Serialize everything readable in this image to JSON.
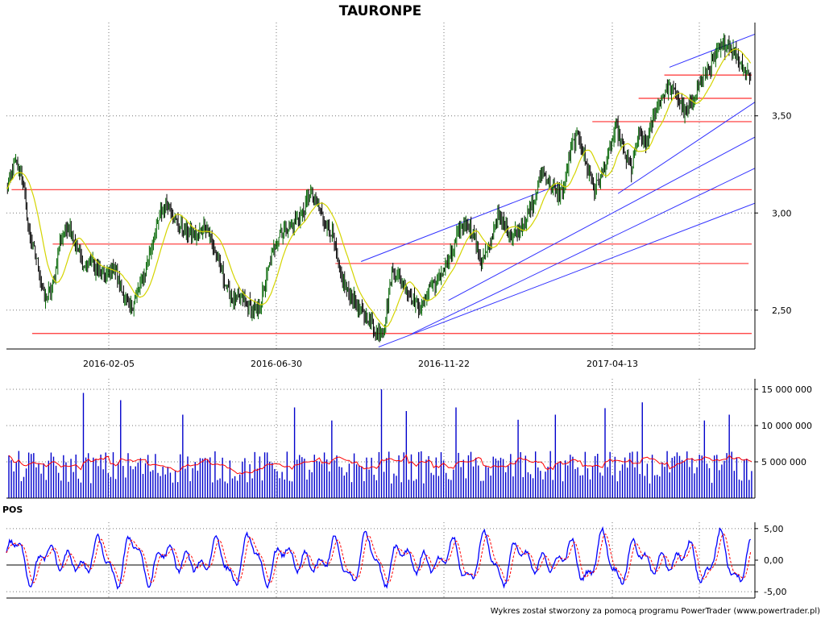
{
  "chart_data": [
    {
      "type": "candlestick",
      "title": "TAURONPE",
      "x_ticks": [
        "2016-02-05",
        "2016-06-30",
        "2016-11-22",
        "2017-04-13"
      ],
      "y_ticks": [
        "2,50",
        "3,00",
        "3,50"
      ],
      "ylim": [
        2.3,
        3.98
      ],
      "close_path": [
        [
          0,
          3.12
        ],
        [
          8,
          3.25
        ],
        [
          15,
          3.2
        ],
        [
          22,
          2.9
        ],
        [
          30,
          2.75
        ],
        [
          37,
          2.55
        ],
        [
          45,
          2.62
        ],
        [
          52,
          2.85
        ],
        [
          60,
          2.95
        ],
        [
          68,
          2.83
        ],
        [
          75,
          2.72
        ],
        [
          82,
          2.75
        ],
        [
          90,
          2.7
        ],
        [
          98,
          2.68
        ],
        [
          105,
          2.72
        ],
        [
          112,
          2.6
        ],
        [
          120,
          2.5
        ],
        [
          127,
          2.58
        ],
        [
          135,
          2.7
        ],
        [
          142,
          2.85
        ],
        [
          150,
          3.0
        ],
        [
          157,
          3.05
        ],
        [
          164,
          2.96
        ],
        [
          171,
          2.92
        ],
        [
          178,
          2.9
        ],
        [
          186,
          2.88
        ],
        [
          193,
          2.95
        ],
        [
          200,
          2.85
        ],
        [
          208,
          2.72
        ],
        [
          215,
          2.6
        ],
        [
          222,
          2.55
        ],
        [
          229,
          2.56
        ],
        [
          237,
          2.52
        ],
        [
          244,
          2.48
        ],
        [
          251,
          2.62
        ],
        [
          259,
          2.8
        ],
        [
          266,
          2.9
        ],
        [
          273,
          2.92
        ],
        [
          280,
          2.95
        ],
        [
          288,
          3.0
        ],
        [
          295,
          3.1
        ],
        [
          302,
          3.05
        ],
        [
          310,
          2.95
        ],
        [
          317,
          2.9
        ],
        [
          324,
          2.7
        ],
        [
          331,
          2.6
        ],
        [
          339,
          2.55
        ],
        [
          346,
          2.48
        ],
        [
          353,
          2.45
        ],
        [
          361,
          2.38
        ],
        [
          368,
          2.42
        ],
        [
          375,
          2.7
        ],
        [
          382,
          2.68
        ],
        [
          390,
          2.6
        ],
        [
          397,
          2.55
        ],
        [
          404,
          2.5
        ],
        [
          411,
          2.62
        ],
        [
          419,
          2.65
        ],
        [
          426,
          2.72
        ],
        [
          433,
          2.78
        ],
        [
          441,
          2.92
        ],
        [
          448,
          2.95
        ],
        [
          455,
          2.88
        ],
        [
          462,
          2.75
        ],
        [
          470,
          2.82
        ],
        [
          477,
          2.98
        ],
        [
          484,
          2.95
        ],
        [
          492,
          2.88
        ],
        [
          499,
          2.92
        ],
        [
          506,
          2.98
        ],
        [
          513,
          3.05
        ],
        [
          521,
          3.22
        ],
        [
          528,
          3.15
        ],
        [
          535,
          3.1
        ],
        [
          542,
          3.12
        ],
        [
          550,
          3.35
        ],
        [
          557,
          3.4
        ],
        [
          564,
          3.25
        ],
        [
          572,
          3.12
        ],
        [
          579,
          3.2
        ],
        [
          586,
          3.3
        ],
        [
          593,
          3.45
        ],
        [
          601,
          3.3
        ],
        [
          608,
          3.22
        ],
        [
          615,
          3.4
        ],
        [
          622,
          3.35
        ],
        [
          630,
          3.5
        ],
        [
          637,
          3.6
        ],
        [
          644,
          3.65
        ],
        [
          651,
          3.62
        ],
        [
          659,
          3.52
        ],
        [
          666,
          3.55
        ],
        [
          673,
          3.65
        ],
        [
          681,
          3.72
        ],
        [
          688,
          3.78
        ],
        [
          695,
          3.85
        ],
        [
          702,
          3.87
        ],
        [
          709,
          3.82
        ],
        [
          717,
          3.75
        ],
        [
          724,
          3.7
        ]
      ],
      "horizontal_levels": [
        {
          "y": 3.12,
          "x0": 5,
          "x1": 725
        },
        {
          "y": 2.84,
          "x0": 45,
          "x1": 725
        },
        {
          "y": 2.74,
          "x0": 320,
          "x1": 722
        },
        {
          "y": 2.38,
          "x0": 25,
          "x1": 725
        },
        {
          "y": 3.47,
          "x0": 570,
          "x1": 725
        },
        {
          "y": 3.59,
          "x0": 615,
          "x1": 725
        },
        {
          "y": 3.71,
          "x0": 640,
          "x1": 725
        }
      ],
      "trend_lines": [
        {
          "x0": 362,
          "y0": 2.31,
          "x1": 728,
          "y1": 3.05
        },
        {
          "x0": 395,
          "y0": 2.38,
          "x1": 728,
          "y1": 3.23
        },
        {
          "x0": 430,
          "y0": 2.55,
          "x1": 728,
          "y1": 3.39
        },
        {
          "x0": 595,
          "y0": 3.1,
          "x1": 728,
          "y1": 3.57
        },
        {
          "x0": 345,
          "y0": 2.75,
          "x1": 540,
          "y1": 3.15
        },
        {
          "x0": 645,
          "y0": 3.75,
          "x1": 728,
          "y1": 3.92
        }
      ]
    },
    {
      "type": "bar",
      "title": "",
      "y_ticks": [
        "5 000 000",
        "10 000 000",
        "15 000 000"
      ],
      "ylim": [
        0,
        16000000
      ],
      "bar_count": 300,
      "moving_average_color": "#ff0000",
      "bar_color": "#0000cc"
    },
    {
      "type": "line",
      "title": "POS",
      "y_ticks": [
        "5,00",
        "0,00",
        "-5,00"
      ],
      "ylim": [
        -6,
        6
      ],
      "series": [
        {
          "name": "",
          "color": "#0000ff",
          "style": "solid"
        },
        {
          "name": "",
          "color": "#ff0000",
          "style": "dashed"
        }
      ]
    }
  ],
  "footer": "Wykres został stworzony za pomocą programu PowerTrader (www.powertrader.pl)"
}
